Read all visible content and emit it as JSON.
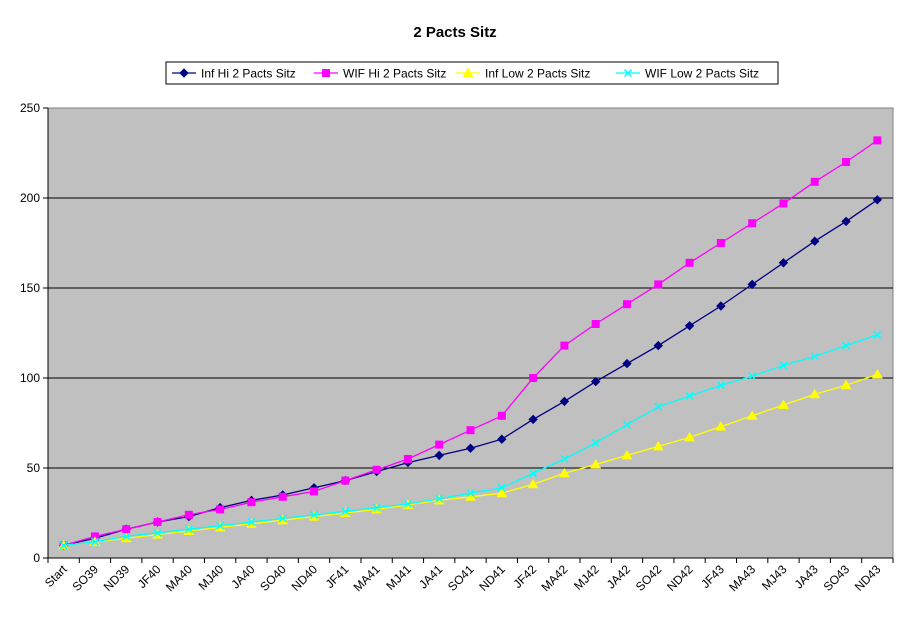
{
  "chart_data": {
    "type": "line",
    "title": "2 Pacts Sitz",
    "xlabel": "",
    "ylabel": "",
    "ylim": [
      0,
      250
    ],
    "yticks": [
      0,
      50,
      100,
      150,
      200,
      250
    ],
    "grid": true,
    "legend_position": "top",
    "plot_background": "#c0c0c0",
    "categories": [
      "Start",
      "SO39",
      "ND39",
      "JF40",
      "MA40",
      "MJ40",
      "JA40",
      "SO40",
      "ND40",
      "JF41",
      "MA41",
      "MJ41",
      "JA41",
      "SO41",
      "ND41",
      "JF42",
      "MA42",
      "MJ42",
      "JA42",
      "SO42",
      "ND42",
      "JF43",
      "MA43",
      "MJ43",
      "JA43",
      "SO43",
      "ND43"
    ],
    "series": [
      {
        "name": "Inf Hi 2 Pacts Sitz",
        "color": "#000080",
        "marker": "diamond",
        "values": [
          7,
          11,
          16,
          20,
          23,
          28,
          32,
          35,
          39,
          43,
          48,
          53,
          57,
          61,
          66,
          77,
          87,
          98,
          108,
          118,
          129,
          140,
          152,
          164,
          176,
          187,
          199
        ]
      },
      {
        "name": "WIF Hi 2 Pacts Sitz",
        "color": "#ff00ff",
        "marker": "square",
        "values": [
          7,
          12,
          16,
          20,
          24,
          27,
          31,
          34,
          37,
          43,
          49,
          55,
          63,
          71,
          79,
          100,
          118,
          130,
          141,
          152,
          164,
          175,
          186,
          197,
          209,
          220,
          232
        ]
      },
      {
        "name": "Inf Low 2 Pacts Sitz",
        "color": "#ffff00",
        "marker": "triangle",
        "values": [
          7,
          9,
          11,
          13,
          15,
          17,
          19,
          21,
          23,
          25,
          27,
          29.5,
          32,
          34,
          36,
          41,
          47,
          52,
          57,
          62,
          67,
          73,
          79,
          85,
          91,
          96,
          102
        ]
      },
      {
        "name": "WIF Low 2 Pacts Sitz",
        "color": "#00ffff",
        "marker": "star",
        "values": [
          7,
          9,
          12,
          14,
          16,
          18,
          20,
          22,
          24,
          26,
          28,
          30,
          33,
          36,
          39,
          47,
          55,
          64,
          74,
          84,
          90,
          96,
          101,
          107,
          112,
          118,
          124
        ]
      }
    ]
  }
}
